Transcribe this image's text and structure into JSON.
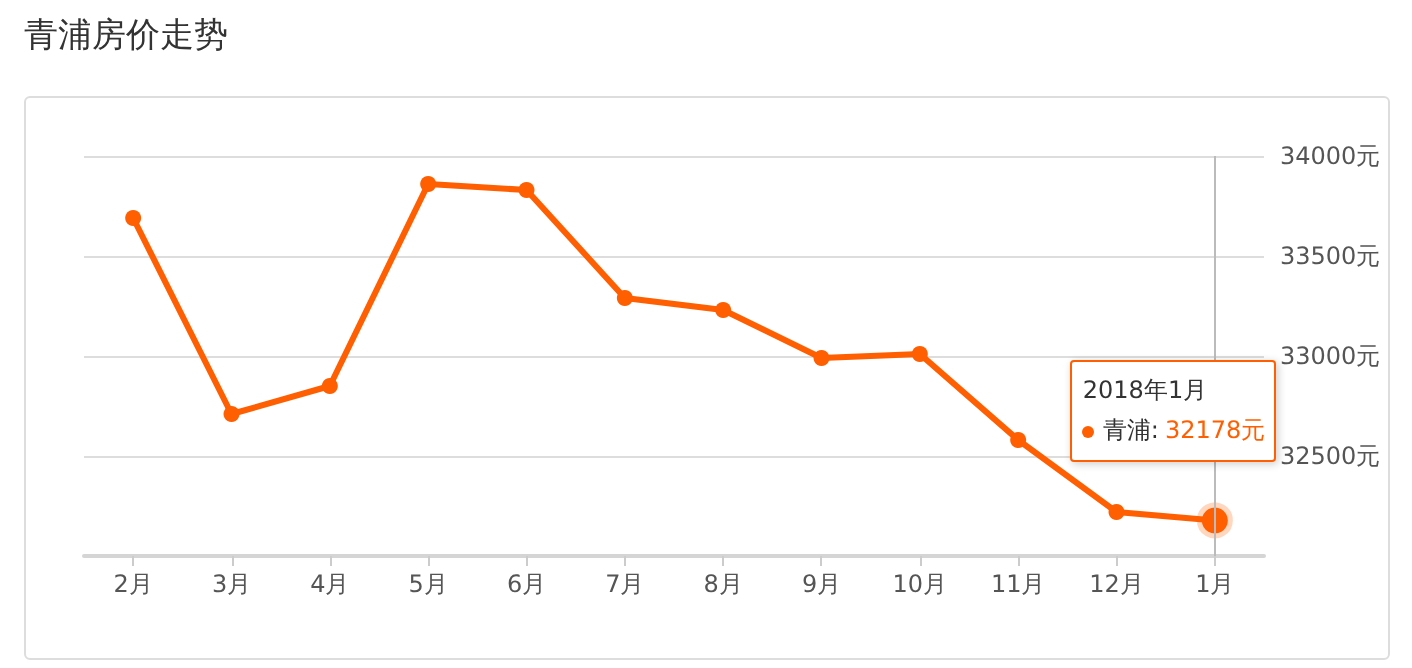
{
  "chart_data": {
    "type": "line",
    "title": "青浦房价走势",
    "categories": [
      "2月",
      "3月",
      "4月",
      "5月",
      "6月",
      "7月",
      "8月",
      "9月",
      "10月",
      "11月",
      "12月",
      "1月"
    ],
    "series": [
      {
        "name": "青浦:",
        "color": "#ff5f00",
        "values": [
          33690,
          32710,
          32850,
          33860,
          33830,
          33290,
          33230,
          32990,
          33010,
          32580,
          32220,
          32178
        ],
        "value_labels": [
          null,
          null,
          null,
          null,
          null,
          null,
          null,
          null,
          null,
          null,
          null,
          "32178元"
        ]
      }
    ],
    "ylim": [
      32000,
      34000
    ],
    "yticks": [
      {
        "value": 32000,
        "label": null
      },
      {
        "value": 32500,
        "label": "32500元"
      },
      {
        "value": 33000,
        "label": "33000元"
      },
      {
        "value": 33500,
        "label": "33500元"
      },
      {
        "value": 34000,
        "label": "34000元"
      }
    ],
    "annotations": [
      "2018年1月"
    ],
    "ref_lines": [
      {
        "axis": "x",
        "value": "1月",
        "color": "#bbbbbb"
      }
    ],
    "grid": "y",
    "marker": "circle",
    "line_style": "solid",
    "legend": "right"
  }
}
